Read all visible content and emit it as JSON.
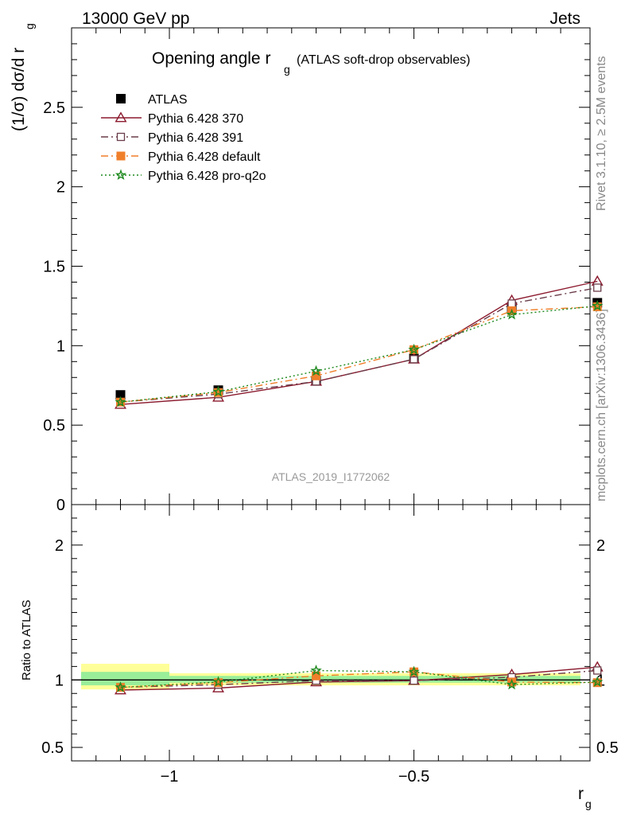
{
  "header": {
    "left": "13000 GeV pp",
    "right": "Jets"
  },
  "side": {
    "rivet": "Rivet 3.1.10, ≥ 2.5M events",
    "mcplots": "mcplots.cern.ch [arXiv:1306.3436]"
  },
  "analysis_id": "ATLAS_2019_I1772062",
  "chart_data": [
    {
      "type": "line",
      "title_main": "Opening angle r",
      "title_sub": "g",
      "title_note": "(ATLAS soft-drop observables)",
      "ylabel": "(1/σ) dσ/d r",
      "ylabel_sub": "g",
      "ylim": [
        0,
        3.0
      ],
      "yticks": [
        0,
        0.5,
        1,
        1.5,
        2,
        2.5
      ],
      "ytick_labels": [
        "0",
        "0.5",
        "1",
        "1.5",
        "2",
        "2.5"
      ],
      "xlim": [
        -1.2,
        -0.14
      ],
      "x": [
        -1.1,
        -0.9,
        -0.7,
        -0.5,
        -0.3,
        -0.125
      ],
      "series": [
        {
          "name": "ATLAS",
          "color": "#000000",
          "marker": "square-filled",
          "line": "none",
          "values": [
            0.69,
            0.72,
            0.78,
            0.92,
            1.24,
            1.27
          ]
        },
        {
          "name": "Pythia 6.428 370",
          "color": "#8b1a2e",
          "marker": "triangle-open",
          "line": "solid",
          "values": [
            0.63,
            0.675,
            0.775,
            0.915,
            1.285,
            1.405
          ]
        },
        {
          "name": "Pythia 6.428 391",
          "color": "#6b3d4a",
          "marker": "square-open",
          "line": "dashdot",
          "values": [
            0.645,
            0.695,
            0.775,
            0.915,
            1.265,
            1.365
          ]
        },
        {
          "name": "Pythia 6.428 default",
          "color": "#f07f2a",
          "marker": "square-filled",
          "line": "dashdot",
          "values": [
            0.645,
            0.705,
            0.81,
            0.975,
            1.22,
            1.245
          ]
        },
        {
          "name": "Pythia 6.428 pro-q2o",
          "color": "#1f8a1f",
          "marker": "star",
          "line": "dotted",
          "values": [
            0.645,
            0.71,
            0.84,
            0.975,
            1.195,
            1.25
          ]
        }
      ]
    },
    {
      "type": "line",
      "ylabel": "Ratio to ATLAS",
      "xlabel": "r",
      "xlabel_sub": "g",
      "ylim": [
        0.4,
        2.3
      ],
      "yticks": [
        0.5,
        1,
        2
      ],
      "ytick_labels": [
        "0.5",
        "1",
        "2"
      ],
      "xticks": [
        -1,
        -0.5
      ],
      "xtick_labels": [
        "−1",
        "−0.5"
      ],
      "xlim": [
        -1.2,
        -0.14
      ],
      "band_edges": [
        -1.2,
        -1.0,
        -0.8,
        -0.6,
        -0.4,
        -0.2,
        -0.05
      ],
      "band_yellow": [
        [
          0.93,
          1.12
        ],
        [
          0.96,
          1.05
        ],
        [
          0.96,
          1.05
        ],
        [
          0.96,
          1.05
        ],
        [
          0.96,
          1.05
        ],
        [
          0.96,
          1.05
        ]
      ],
      "band_green": [
        [
          0.96,
          1.06
        ],
        [
          0.98,
          1.03
        ],
        [
          0.98,
          1.03
        ],
        [
          0.98,
          1.03
        ],
        [
          0.98,
          1.03
        ],
        [
          0.98,
          1.03
        ]
      ],
      "x": [
        -1.1,
        -0.9,
        -0.7,
        -0.5,
        -0.3,
        -0.125
      ],
      "series": [
        {
          "name": "Pythia 6.428 370",
          "color": "#8b1a2e",
          "marker": "triangle-open",
          "line": "solid",
          "values": [
            0.925,
            0.94,
            0.985,
            0.995,
            1.04,
            1.095
          ]
        },
        {
          "name": "Pythia 6.428 391",
          "color": "#6b3d4a",
          "marker": "square-open",
          "line": "dashdot",
          "values": [
            0.945,
            0.965,
            0.995,
            0.995,
            1.02,
            1.07
          ]
        },
        {
          "name": "Pythia 6.428 default",
          "color": "#f07f2a",
          "marker": "square-filled",
          "line": "dashdot",
          "values": [
            0.945,
            0.98,
            1.03,
            1.06,
            0.985,
            0.98
          ]
        },
        {
          "name": "Pythia 6.428 pro-q2o",
          "color": "#1f8a1f",
          "marker": "star",
          "line": "dotted",
          "values": [
            0.945,
            0.985,
            1.07,
            1.06,
            0.965,
            0.985
          ]
        }
      ]
    }
  ]
}
